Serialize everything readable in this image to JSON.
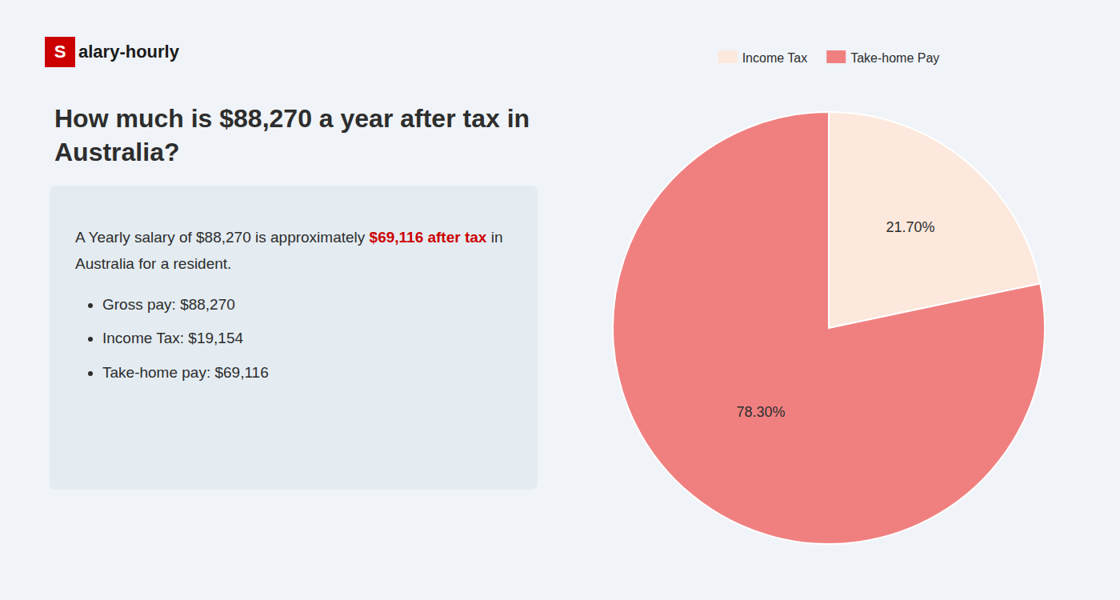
{
  "chart_data": {
    "type": "pie",
    "title": "How much is $88,270 a year after tax in Australia?",
    "annotations": [
      "S",
      "alary-hourly",
      "A Yearly salary of $88,270 is approximately ",
      "$69,116 after tax",
      " in",
      "Australia for a resident.",
      "Gross pay: $88,270",
      "Income Tax: $19,154",
      "Take-home pay: $69,116"
    ],
    "categories": [
      "Income Tax",
      "Take-home Pay"
    ],
    "values": [
      21.7,
      78.3
    ],
    "value_labels": [
      "21.70%",
      "78.30%"
    ],
    "colors": [
      "#fce8dc",
      "#f08080"
    ],
    "data_labels": true,
    "legend": "top"
  }
}
